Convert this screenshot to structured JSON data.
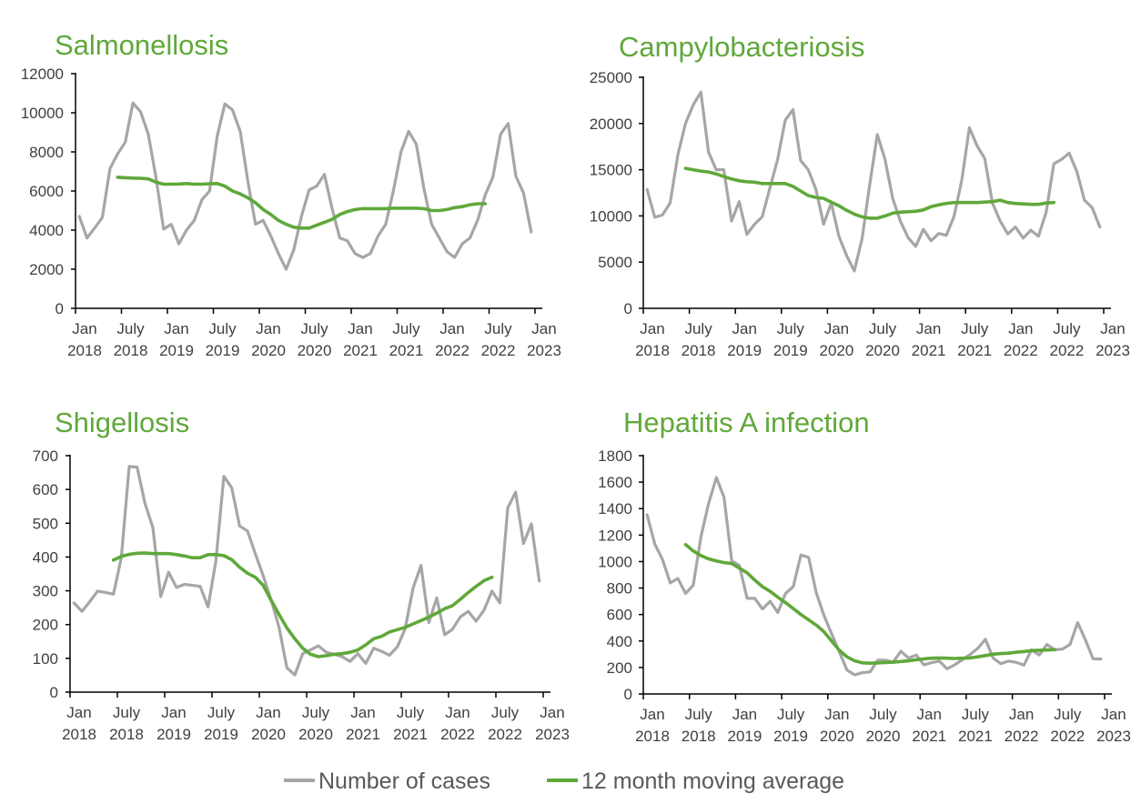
{
  "legend": {
    "cases_label": "Number of cases",
    "ma_label": "12 month moving average"
  },
  "colors": {
    "cases": "#a6a6a6",
    "moving_average": "#5fa83a",
    "title": "#5fa83a",
    "axis": "#000000"
  },
  "chart_data": [
    {
      "type": "line",
      "title": "Salmonellosis",
      "x_ticks": [
        [
          "Jan",
          "2018"
        ],
        [
          "July",
          "2018"
        ],
        [
          "Jan",
          "2019"
        ],
        [
          "July",
          "2019"
        ],
        [
          "Jan",
          "2020"
        ],
        [
          "July",
          "2020"
        ],
        [
          "Jan",
          "2021"
        ],
        [
          "July",
          "2021"
        ],
        [
          "Jan",
          "2022"
        ],
        [
          "July",
          "2022"
        ],
        [
          "Jan",
          "2023"
        ]
      ],
      "x_range": [
        "2018-01",
        "2023-01"
      ],
      "ylim": [
        0,
        12000
      ],
      "y_ticks": [
        0,
        2000,
        4000,
        6000,
        8000,
        10000,
        12000
      ],
      "series": [
        {
          "name": "Number of cases",
          "start": "2018-01",
          "values": [
            4700,
            3600,
            4100,
            4650,
            7150,
            7900,
            8500,
            10500,
            10050,
            8900,
            6700,
            4050,
            4300,
            3300,
            4000,
            4500,
            5550,
            6000,
            8800,
            10450,
            10150,
            9050,
            6500,
            4300,
            4500,
            3700,
            2800,
            2000,
            3000,
            4700,
            6050,
            6250,
            6850,
            5100,
            3600,
            3450,
            2800,
            2600,
            2800,
            3700,
            4300,
            6000,
            8000,
            9050,
            8400,
            6100,
            4300,
            3600,
            2900,
            2600,
            3300,
            3600,
            4500,
            5800,
            6700,
            8900,
            9450,
            6750,
            5900,
            3900
          ]
        },
        {
          "name": "12 month moving average",
          "start": "2018-06",
          "values": [
            6700,
            6680,
            6660,
            6650,
            6620,
            6450,
            6350,
            6350,
            6360,
            6380,
            6350,
            6350,
            6370,
            6380,
            6250,
            6000,
            5850,
            5650,
            5400,
            5050,
            4800,
            4500,
            4300,
            4150,
            4100,
            4100,
            4250,
            4400,
            4550,
            4800,
            4950,
            5050,
            5100,
            5100,
            5100,
            5100,
            5120,
            5120,
            5120,
            5120,
            5100,
            5000,
            5000,
            5050,
            5150,
            5200,
            5300,
            5350,
            5350
          ]
        }
      ]
    },
    {
      "type": "line",
      "title": "Campylobacteriosis",
      "x_ticks": [
        [
          "Jan",
          "2018"
        ],
        [
          "July",
          "2018"
        ],
        [
          "Jan",
          "2019"
        ],
        [
          "July",
          "2019"
        ],
        [
          "Jan",
          "2020"
        ],
        [
          "July",
          "2020"
        ],
        [
          "Jan",
          "2021"
        ],
        [
          "July",
          "2021"
        ],
        [
          "Jan",
          "2022"
        ],
        [
          "July",
          "2022"
        ],
        [
          "Jan",
          "2023"
        ]
      ],
      "x_range": [
        "2018-01",
        "2023-01"
      ],
      "ylim": [
        0,
        25000
      ],
      "y_ticks": [
        0,
        5000,
        10000,
        15000,
        20000,
        25000
      ],
      "series": [
        {
          "name": "Number of cases",
          "start": "2018-01",
          "values": [
            12850,
            9850,
            10100,
            11400,
            16600,
            20000,
            22000,
            23400,
            16900,
            15000,
            15000,
            9450,
            11550,
            8000,
            9100,
            9900,
            13000,
            16100,
            20350,
            21500,
            16000,
            15000,
            12850,
            9100,
            11400,
            7800,
            5700,
            4050,
            7500,
            13350,
            18800,
            16100,
            11900,
            9450,
            7650,
            6700,
            8550,
            7300,
            8100,
            7900,
            9950,
            13850,
            19550,
            17600,
            16200,
            11400,
            9450,
            8050,
            8800,
            7600,
            8450,
            7800,
            10400,
            15650,
            16100,
            16800,
            14800,
            11700,
            10900,
            8800
          ]
        },
        {
          "name": "12 month moving average",
          "start": "2018-06",
          "values": [
            15150,
            15000,
            14850,
            14750,
            14550,
            14250,
            14000,
            13800,
            13700,
            13650,
            13500,
            13500,
            13500,
            13500,
            13200,
            12700,
            12200,
            12000,
            11900,
            11500,
            11100,
            10600,
            10200,
            9900,
            9750,
            9750,
            10000,
            10300,
            10400,
            10450,
            10500,
            10650,
            11000,
            11200,
            11350,
            11450,
            11450,
            11450,
            11450,
            11500,
            11550,
            11700,
            11450,
            11350,
            11300,
            11250,
            11250,
            11400,
            11450
          ]
        }
      ]
    },
    {
      "type": "line",
      "title": "Shigellosis",
      "x_ticks": [
        [
          "Jan",
          "2018"
        ],
        [
          "July",
          "2018"
        ],
        [
          "Jan",
          "2019"
        ],
        [
          "July",
          "2019"
        ],
        [
          "Jan",
          "2020"
        ],
        [
          "July",
          "2020"
        ],
        [
          "Jan",
          "2021"
        ],
        [
          "July",
          "2021"
        ],
        [
          "Jan",
          "2022"
        ],
        [
          "July",
          "2022"
        ],
        [
          "Jan",
          "2023"
        ]
      ],
      "x_range": [
        "2018-01",
        "2023-01"
      ],
      "ylim": [
        0,
        700
      ],
      "y_ticks": [
        0,
        100,
        200,
        300,
        400,
        500,
        600,
        700
      ],
      "series": [
        {
          "name": "Number of cases",
          "start": "2018-01",
          "values": [
            264,
            239,
            268,
            299,
            295,
            290,
            398,
            668,
            666,
            559,
            487,
            283,
            355,
            310,
            319,
            316,
            313,
            252,
            389,
            639,
            605,
            492,
            477,
            409,
            344,
            273,
            192,
            72,
            51,
            114,
            125,
            137,
            118,
            112,
            105,
            91,
            114,
            85,
            130,
            121,
            109,
            134,
            188,
            308,
            375,
            206,
            279,
            170,
            186,
            223,
            239,
            210,
            243,
            299,
            264,
            545,
            592,
            440,
            498,
            329
          ]
        },
        {
          "name": "12 month moving average",
          "start": "2018-06",
          "values": [
            391,
            402,
            408,
            411,
            412,
            410,
            410,
            410,
            407,
            403,
            398,
            398,
            407,
            407,
            404,
            392,
            370,
            352,
            340,
            316,
            272,
            230,
            190,
            158,
            130,
            112,
            105,
            108,
            112,
            114,
            118,
            125,
            140,
            158,
            165,
            178,
            185,
            192,
            202,
            212,
            222,
            234,
            247,
            256,
            275,
            295,
            313,
            330,
            340
          ]
        }
      ]
    },
    {
      "type": "line",
      "title": "Hepatitis A infection",
      "x_ticks": [
        [
          "Jan",
          "2018"
        ],
        [
          "July",
          "2018"
        ],
        [
          "Jan",
          "2019"
        ],
        [
          "July",
          "2019"
        ],
        [
          "Jan",
          "2020"
        ],
        [
          "July",
          "2020"
        ],
        [
          "Jan",
          "2021"
        ],
        [
          "July",
          "2021"
        ],
        [
          "Jan",
          "2022"
        ],
        [
          "July",
          "2022"
        ],
        [
          "Jan",
          "2023"
        ]
      ],
      "x_range": [
        "2018-01",
        "2023-01"
      ],
      "ylim": [
        0,
        1800
      ],
      "y_ticks": [
        0,
        200,
        400,
        600,
        800,
        1000,
        1200,
        1400,
        1600,
        1800
      ],
      "series": [
        {
          "name": "Number of cases",
          "start": "2018-01",
          "values": [
            1353,
            1131,
            1016,
            839,
            872,
            759,
            821,
            1188,
            1440,
            1635,
            1486,
            1005,
            970,
            722,
            722,
            642,
            700,
            615,
            759,
            810,
            1050,
            1032,
            764,
            592,
            454,
            317,
            179,
            144,
            161,
            167,
            255,
            255,
            241,
            323,
            271,
            294,
            220,
            236,
            248,
            190,
            220,
            259,
            298,
            344,
            413,
            271,
            229,
            248,
            239,
            218,
            333,
            294,
            374,
            333,
            339,
            374,
            539,
            408,
            266,
            264
          ]
        },
        {
          "name": "12 month moving average",
          "start": "2018-06",
          "values": [
            1128,
            1080,
            1045,
            1020,
            1005,
            992,
            985,
            950,
            915,
            860,
            810,
            775,
            730,
            690,
            645,
            600,
            560,
            520,
            470,
            400,
            330,
            280,
            250,
            235,
            232,
            235,
            238,
            240,
            245,
            250,
            258,
            265,
            270,
            272,
            270,
            268,
            270,
            272,
            280,
            290,
            300,
            305,
            308,
            315,
            320,
            328,
            330,
            332,
            335
          ]
        }
      ]
    }
  ]
}
